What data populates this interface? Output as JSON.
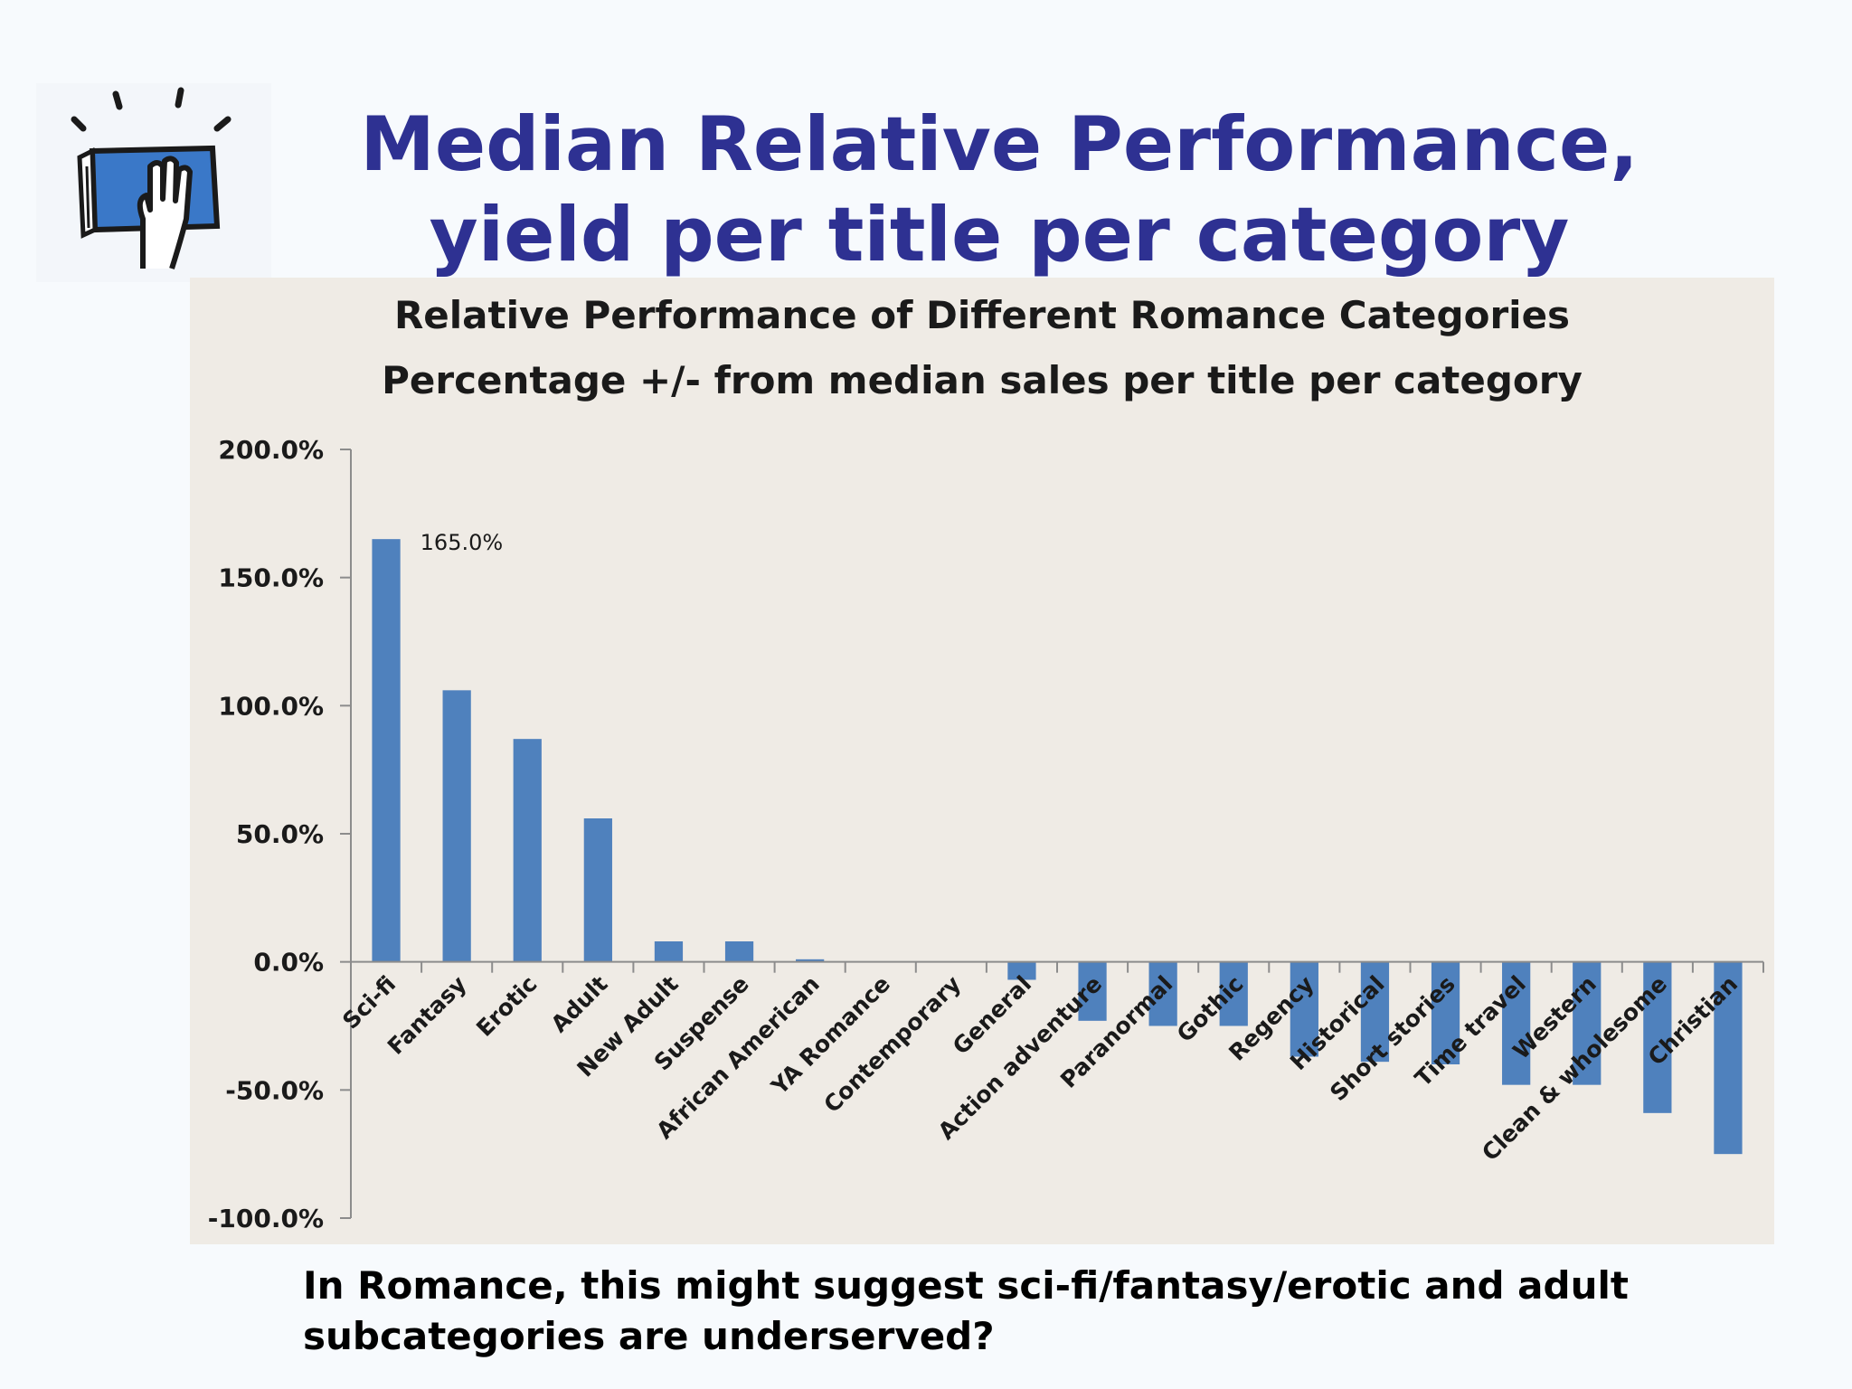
{
  "slide": {
    "title_line1": "Median Relative Performance,",
    "title_line2": "yield per title per category",
    "caption_line1": "In Romance, this might suggest sci-fi/fantasy/erotic and adult",
    "caption_line2": "subcategories are underserved?"
  },
  "logo": {
    "icon": "book-hand-icon",
    "color": "#3a78c8"
  },
  "colors": {
    "bar": "#4f81bd",
    "title": "#2e3192",
    "plot_bg": "#efebe5"
  },
  "chart_data": {
    "type": "bar",
    "title": "Relative Performance of Different Romance Categories",
    "subtitle": "Percentage +/- from median sales per title per category",
    "xlabel": "",
    "ylabel": "",
    "ylim": [
      -100,
      200
    ],
    "yticks": [
      "200.0%",
      "150.0%",
      "100.0%",
      "50.0%",
      "0.0%",
      "-50.0%",
      "-100.0%"
    ],
    "grid": false,
    "categories": [
      "Sci-fi",
      "Fantasy",
      "Erotic",
      "Adult",
      "New Adult",
      "Suspense",
      "African American",
      "YA Romance",
      "Contemporary",
      "General",
      "Action adventure",
      "Paranormal",
      "Gothic",
      "Regency",
      "Historical",
      "Short stories",
      "Time travel",
      "Western",
      "Clean & wholesome",
      "Christian"
    ],
    "values": [
      165,
      106,
      87,
      56,
      8,
      8,
      1,
      0,
      0,
      -7,
      -23,
      -25,
      -25,
      -37,
      -39,
      -40,
      -48,
      -48,
      -59,
      -75
    ],
    "data_labels": [
      {
        "category": "Sci-fi",
        "text": "165.0%"
      }
    ]
  }
}
